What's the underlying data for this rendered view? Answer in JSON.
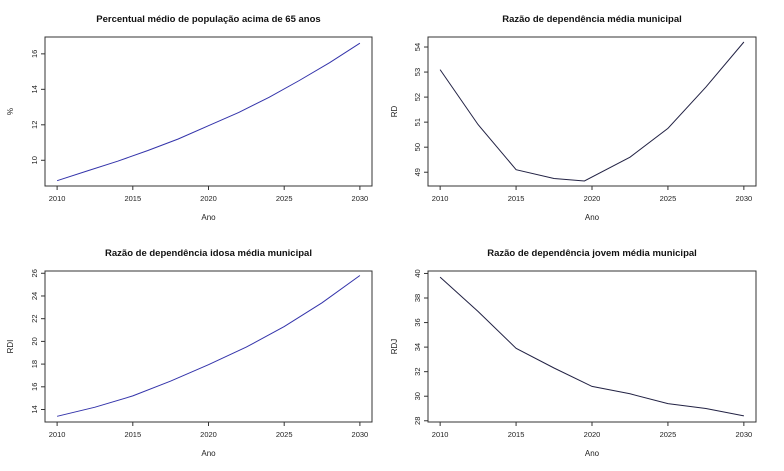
{
  "chart_data": [
    {
      "type": "line",
      "title": "Percentual médio de população acima de 65 anos",
      "xlabel": "Ano",
      "ylabel": "%",
      "x": [
        2010,
        2012,
        2014,
        2016,
        2018,
        2020,
        2022,
        2024,
        2026,
        2028,
        2030
      ],
      "series": [
        {
          "values": [
            8.85,
            9.4,
            9.95,
            10.55,
            11.2,
            11.95,
            12.7,
            13.55,
            14.5,
            15.5,
            16.6
          ]
        }
      ],
      "xticks": [
        2010,
        2015,
        2020,
        2025,
        2030
      ],
      "yticks": [
        10,
        12,
        14,
        16
      ],
      "xlim": [
        2009.2,
        2030.8
      ],
      "ylim": [
        8.55,
        16.95
      ],
      "line_color": "#3333aa"
    },
    {
      "type": "line",
      "title": "Razão de dependência média municipal",
      "xlabel": "Ano",
      "ylabel": "RD",
      "x": [
        2010,
        2012.5,
        2015,
        2017.5,
        2019.5,
        2022.5,
        2025,
        2027.5,
        2030
      ],
      "series": [
        {
          "values": [
            53.1,
            50.9,
            49.1,
            48.75,
            48.65,
            49.6,
            50.75,
            52.4,
            54.2
          ]
        }
      ],
      "xticks": [
        2010,
        2015,
        2020,
        2025,
        2030
      ],
      "yticks": [
        49,
        50,
        51,
        52,
        53,
        54
      ],
      "xlim": [
        2009.2,
        2030.8
      ],
      "ylim": [
        48.45,
        54.4
      ],
      "line_color": "#222244"
    },
    {
      "type": "line",
      "title": "Razão de dependência idosa média municipal",
      "xlabel": "Ano",
      "ylabel": "RDI",
      "x": [
        2010,
        2012.5,
        2015,
        2017.5,
        2020,
        2022.5,
        2025,
        2027.5,
        2030
      ],
      "series": [
        {
          "values": [
            13.4,
            14.2,
            15.2,
            16.5,
            17.95,
            19.5,
            21.3,
            23.4,
            25.8
          ]
        }
      ],
      "xticks": [
        2010,
        2015,
        2020,
        2025,
        2030
      ],
      "yticks": [
        14,
        16,
        18,
        20,
        22,
        24,
        26
      ],
      "xlim": [
        2009.2,
        2030.8
      ],
      "ylim": [
        12.9,
        26.2
      ],
      "line_color": "#3333aa"
    },
    {
      "type": "line",
      "title": "Razão de dependência jovem média municipal",
      "xlabel": "Ano",
      "ylabel": "RDJ",
      "x": [
        2010,
        2012.5,
        2015,
        2017.5,
        2020,
        2022.5,
        2025,
        2027.5,
        2030
      ],
      "series": [
        {
          "values": [
            39.7,
            36.9,
            33.9,
            32.3,
            30.8,
            30.2,
            29.4,
            29.0,
            28.4
          ]
        }
      ],
      "xticks": [
        2010,
        2015,
        2020,
        2025,
        2030
      ],
      "yticks": [
        28,
        30,
        32,
        34,
        36,
        38,
        40
      ],
      "xlim": [
        2009.2,
        2030.8
      ],
      "ylim": [
        27.9,
        40.2
      ],
      "line_color": "#222244"
    }
  ]
}
